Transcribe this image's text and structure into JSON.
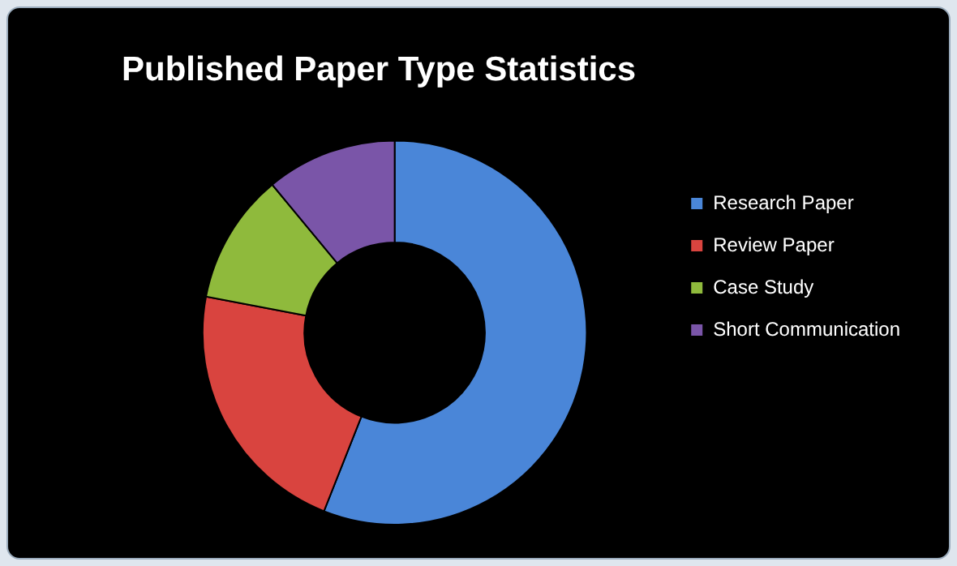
{
  "chart_data": {
    "type": "donut",
    "title": "Published Paper Type Statistics",
    "categories": [
      "Research Paper",
      "Review Paper",
      "Case Study",
      "Short Communication"
    ],
    "values": [
      56,
      22,
      11,
      11
    ],
    "colors": [
      "#4a86d8",
      "#d9443f",
      "#8fba3c",
      "#7a55a8"
    ],
    "legend": "right"
  }
}
